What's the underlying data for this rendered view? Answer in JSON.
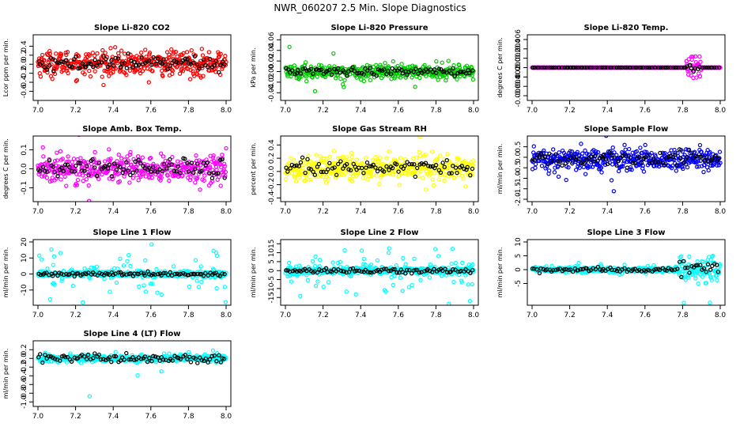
{
  "page_title": "NWR_060207  2.5 Min. Slope Diagnostics",
  "chart_data": [
    {
      "type": "scatter",
      "title": "Slope Li-820 CO2",
      "ylabel": "Lcor ppm per min.",
      "xlim": [
        7.0,
        8.0
      ],
      "xticks": [
        "7.0",
        "7.2",
        "7.4",
        "7.6",
        "7.8",
        "8.0"
      ],
      "ylim": [
        -0.75,
        0.6
      ],
      "yticks": [
        -0.6,
        -0.4,
        -0.2,
        0.0,
        0.2,
        0.4
      ],
      "yticklabels": [
        "-0.6",
        "-0.4",
        "-0.2",
        "0.0",
        "0.2",
        "0.4"
      ],
      "color": "#ff0000",
      "center": 0.02,
      "spread": 0.25,
      "outlier_rate": 0.0,
      "outlier_scale": 0,
      "black_spread": 0.12
    },
    {
      "type": "scatter",
      "title": "Slope Li-820 Pressure",
      "ylabel": "kPa per min.",
      "xlim": [
        7.0,
        8.0
      ],
      "xticks": [
        "7.0",
        "7.2",
        "7.4",
        "7.6",
        "7.8",
        "8.0"
      ],
      "ylim": [
        -0.05,
        0.065
      ],
      "yticks": [
        -0.04,
        -0.02,
        0.0,
        0.02,
        0.04,
        0.06
      ],
      "yticklabels": [
        "-0.04",
        "-0.02",
        "0.00",
        "0.02",
        "0.04",
        "0.06"
      ],
      "color": "#00cc00",
      "center": 0.0,
      "spread": 0.013,
      "outlier_rate": 0.03,
      "outlier_scale": 3.2,
      "black_spread": 0.007
    },
    {
      "type": "scatter",
      "title": "Slope Li-820 Temp.",
      "ylabel": "degrees C per min.",
      "xlim": [
        7.0,
        8.0
      ],
      "xticks": [
        "7.0",
        "7.2",
        "7.4",
        "7.6",
        "7.8",
        "8.0"
      ],
      "ylim": [
        -0.0065,
        0.0065
      ],
      "yticks": [
        -0.006,
        -0.004,
        -0.002,
        0.0,
        0.002,
        0.004,
        0.006
      ],
      "yticklabels": [
        "-0.006",
        "-0.004",
        "-0.002",
        "0.000",
        "0.002",
        "0.004",
        "0.006"
      ],
      "color": "#ff00ff",
      "center": 0.0,
      "spread": 0.0,
      "outlier_rate": 0.0,
      "outlier_scale": 0,
      "black_spread": 0.0,
      "burst": {
        "from": 7.82,
        "to": 7.9,
        "spread": 0.0022
      }
    },
    {
      "type": "scatter",
      "title": "Slope Amb. Box Temp.",
      "ylabel": "degrees C per min.",
      "xlim": [
        7.0,
        8.0
      ],
      "xticks": [
        "7.0",
        "7.2",
        "7.4",
        "7.6",
        "7.8",
        "8.0"
      ],
      "ylim": [
        -0.16,
        0.16
      ],
      "yticks": [
        -0.1,
        0.0,
        0.1
      ],
      "yticklabels": [
        "-0.1",
        "0.0",
        "0.1"
      ],
      "color": "#ff00ff",
      "center": 0.0,
      "spread": 0.06,
      "outlier_rate": 0.02,
      "outlier_scale": 2.0,
      "black_spread": 0.045
    },
    {
      "type": "scatter",
      "title": "Slope Gas Stream RH",
      "ylabel": "percent per min.",
      "xlim": [
        7.0,
        8.0
      ],
      "xticks": [
        "7.0",
        "7.2",
        "7.4",
        "7.6",
        "7.8",
        "8.0"
      ],
      "ylim": [
        -0.42,
        0.5
      ],
      "yticks": [
        -0.4,
        -0.2,
        0.0,
        0.2,
        0.4
      ],
      "yticklabels": [
        "-0.4",
        "-0.2",
        "0.0",
        "0.2",
        "0.4"
      ],
      "color": "#ffff00",
      "center": 0.05,
      "spread": 0.16,
      "outlier_rate": 0.02,
      "outlier_scale": 2.2,
      "black_spread": 0.1
    },
    {
      "type": "scatter",
      "title": "Slope Sample Flow",
      "ylabel": "ml/min per min.",
      "xlim": [
        7.0,
        8.0
      ],
      "xticks": [
        "7.0",
        "7.2",
        "7.4",
        "7.6",
        "7.8",
        "8.0"
      ],
      "ylim": [
        -2.0,
        0.9
      ],
      "yticks": [
        -2.0,
        -1.5,
        -1.0,
        -0.5,
        0.0,
        0.5
      ],
      "yticklabels": [
        "-2.0",
        "-1.5",
        "-1.0",
        "-0.5",
        "0.0",
        "0.5"
      ],
      "color": "#0000ff",
      "center": -0.1,
      "spread": 0.45,
      "outlier_rate": 0.04,
      "outlier_scale": 2.4,
      "black_spread": 0.3
    },
    {
      "type": "scatter",
      "title": "Slope Line 1 Flow",
      "ylabel": "ml/min per min.",
      "xlim": [
        7.0,
        8.0
      ],
      "xticks": [
        "7.0",
        "7.2",
        "7.4",
        "7.6",
        "7.8",
        "8.0"
      ],
      "ylim": [
        -18,
        20
      ],
      "yticks": [
        -10,
        0,
        10,
        20
      ],
      "yticklabels": [
        "-10",
        "0",
        "10",
        "20"
      ],
      "color": "#00ffff",
      "center": 0.0,
      "spread": 1.6,
      "outlier_rate": 0.18,
      "outlier_scale": 5.5,
      "black_spread": 0.9
    },
    {
      "type": "scatter",
      "title": "Slope Line 2 Flow",
      "ylabel": "ml/min per min.",
      "xlim": [
        7.0,
        8.0
      ],
      "xticks": [
        "7.0",
        "7.2",
        "7.4",
        "7.6",
        "7.8",
        "8.0"
      ],
      "ylim": [
        -18,
        16
      ],
      "yticks": [
        -15,
        -10,
        -5,
        0,
        5,
        10,
        15
      ],
      "yticklabels": [
        "-15",
        "-10",
        "-5",
        "0",
        "5",
        "10",
        "15"
      ],
      "color": "#00ffff",
      "center": 0.0,
      "spread": 1.8,
      "outlier_rate": 0.2,
      "outlier_scale": 4.5,
      "black_spread": 1.2
    },
    {
      "type": "scatter",
      "title": "Slope Line 3 Flow",
      "ylabel": "ml/min per min.",
      "xlim": [
        7.0,
        8.0
      ],
      "xticks": [
        "7.0",
        "7.2",
        "7.4",
        "7.6",
        "7.8",
        "8.0"
      ],
      "ylim": [
        -12,
        10
      ],
      "yticks": [
        -5,
        0,
        5,
        10
      ],
      "yticklabels": [
        "-5",
        "0",
        "5",
        "10"
      ],
      "color": "#00ffff",
      "center": 0.0,
      "spread": 0.9,
      "outlier_rate": 0.03,
      "outlier_scale": 2.5,
      "black_spread": 0.7,
      "burst": {
        "from": 7.78,
        "to": 8.0,
        "spread": 3.5
      }
    },
    {
      "type": "scatter",
      "title": "Slope Line 4 (LT) Flow",
      "ylabel": "ml/min per min.",
      "xlim": [
        7.0,
        8.0
      ],
      "xticks": [
        "7.0",
        "7.2",
        "7.4",
        "7.6",
        "7.8",
        "8.0"
      ],
      "ylim": [
        -1.05,
        0.35
      ],
      "yticks": [
        -1.0,
        -0.8,
        -0.6,
        -0.4,
        -0.2,
        0.0,
        0.2
      ],
      "yticklabels": [
        "-1.0",
        "-0.8",
        "-0.6",
        "-0.4",
        "-0.2",
        "0.0",
        "0.2"
      ],
      "color": "#00ffff",
      "center": 0.0,
      "spread": 0.07,
      "outlier_rate": 0.015,
      "outlier_scale": 4.0,
      "black_spread": 0.09
    }
  ]
}
